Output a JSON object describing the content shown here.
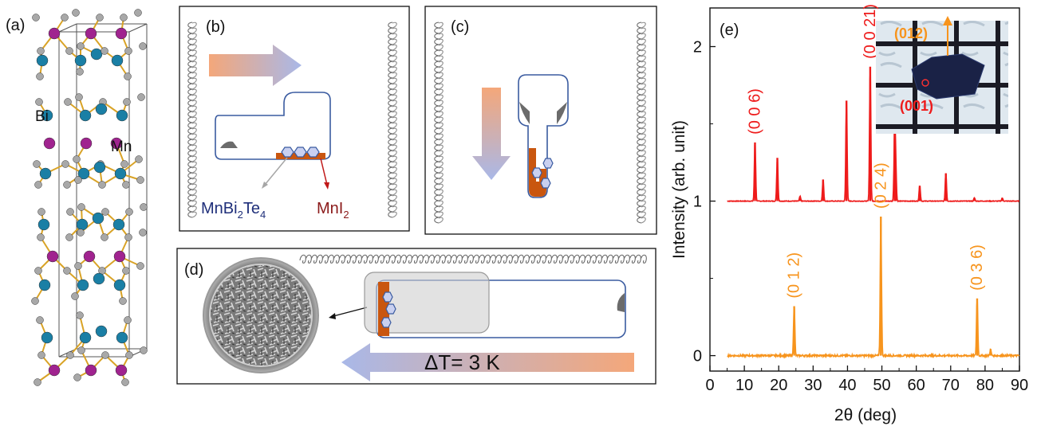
{
  "panels": {
    "a": {
      "label": "(a)",
      "atoms": {
        "bi": "Bi",
        "mn": "Mn"
      },
      "colors": {
        "bi": "#1a7fa5",
        "mn": "#a0238f",
        "te": "#a8a8a8",
        "bond": "#d9a326"
      }
    },
    "b": {
      "label": "(b)",
      "product": "MnBi",
      "product_sub1": "2",
      "product_mid": "Te",
      "product_sub2": "4",
      "flux": "MnI",
      "flux_sub": "2"
    },
    "c": {
      "label": "(c)"
    },
    "d": {
      "label": "(d)",
      "delta_t": "ΔT= 3 K"
    },
    "e": {
      "label": "(e)",
      "inset_labels": {
        "facet_side": "(012)",
        "facet_top": "(001)"
      }
    }
  },
  "colors": {
    "red_series": "#ee1b1b",
    "orange_series": "#f7941d",
    "ampoule_outline": "#3a5ba0",
    "melt": "#c9560f",
    "gradient_hot": "#f4a77a",
    "gradient_cold": "#a9b8e8"
  },
  "chart_data": {
    "type": "line",
    "xlabel": "2θ (deg)",
    "ylabel": "Intensity (arb. unit)",
    "xlim": [
      0,
      90
    ],
    "ylim": [
      -0.1,
      2.25
    ],
    "x_ticks": [
      0,
      10,
      20,
      30,
      40,
      50,
      60,
      70,
      80,
      90
    ],
    "y_ticks": [
      0,
      1,
      2
    ],
    "grid": false,
    "series": [
      {
        "color": "#ee1b1b",
        "baseline": 1.0,
        "x_start": 5,
        "x_end": 90,
        "peaks": [
          {
            "x": 13.1,
            "y": 1.38
          },
          {
            "x": 19.6,
            "y": 1.28
          },
          {
            "x": 26.2,
            "y": 1.03
          },
          {
            "x": 32.9,
            "y": 1.14
          },
          {
            "x": 39.7,
            "y": 1.65
          },
          {
            "x": 46.6,
            "y": 1.87
          },
          {
            "x": 53.7,
            "y": 1.44
          },
          {
            "x": 54.0,
            "y": 1.25
          },
          {
            "x": 61.0,
            "y": 1.1
          },
          {
            "x": 68.6,
            "y": 1.18
          },
          {
            "x": 76.9,
            "y": 1.02
          },
          {
            "x": 85.0,
            "y": 1.02
          }
        ]
      },
      {
        "color": "#f7941d",
        "baseline": 0.0,
        "x_start": 5,
        "x_end": 90,
        "peaks": [
          {
            "x": 24.5,
            "y": 0.32
          },
          {
            "x": 49.7,
            "y": 0.9
          },
          {
            "x": 77.7,
            "y": 0.37
          },
          {
            "x": 81.6,
            "y": 0.04
          }
        ]
      }
    ],
    "annotations": [
      {
        "text": "(0 0 6)",
        "x": 13.1,
        "y": 1.4,
        "color": "#ee1b1b"
      },
      {
        "text": "(0 0 21)",
        "x": 46.6,
        "y": 1.89,
        "color": "#ee1b1b"
      },
      {
        "text": "(0 1 2)",
        "x": 24.5,
        "y": 0.34,
        "color": "#f7941d"
      },
      {
        "text": "(0 2 4)",
        "x": 49.7,
        "y": 0.92,
        "color": "#f7941d"
      },
      {
        "text": "(0 3 6)",
        "x": 77.7,
        "y": 0.39,
        "color": "#f7941d"
      }
    ]
  }
}
